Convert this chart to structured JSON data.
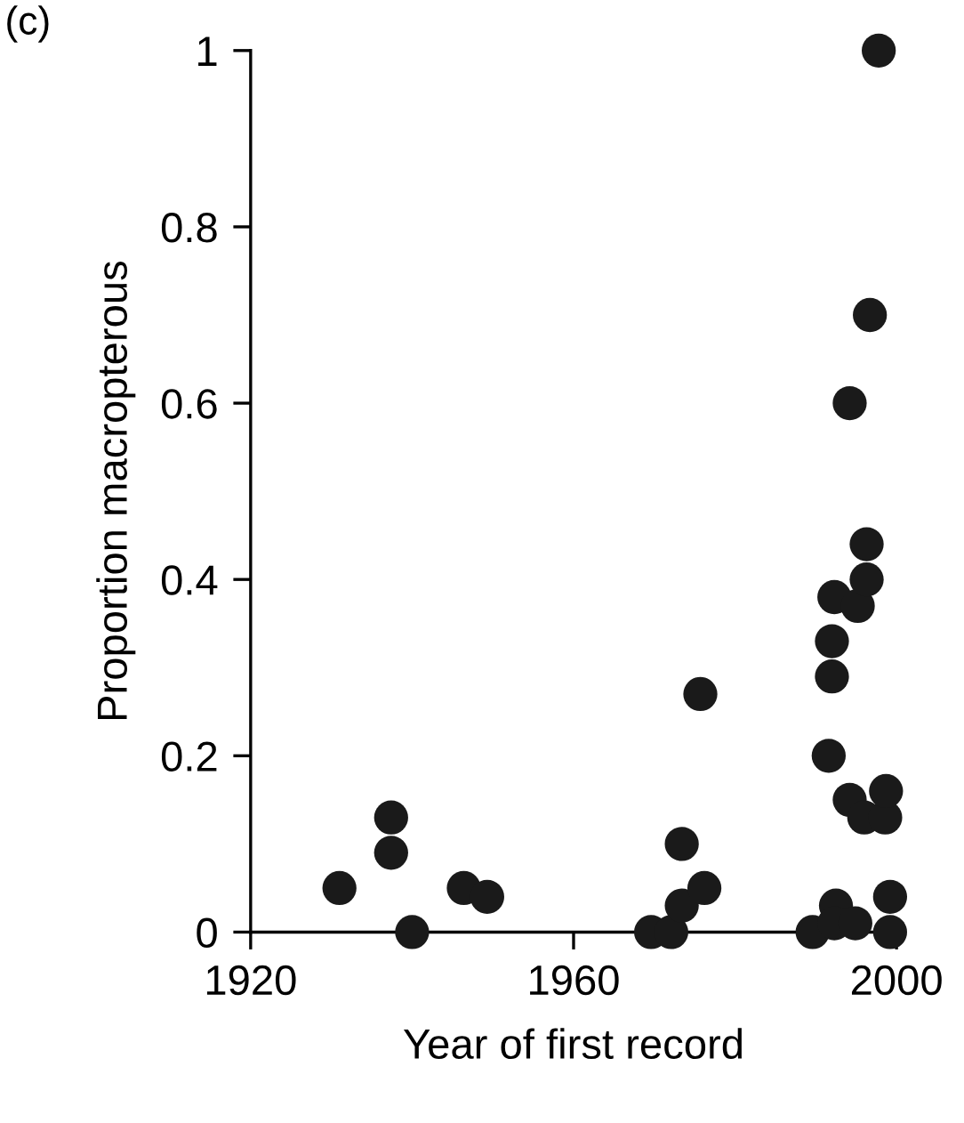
{
  "chart_data": {
    "type": "scatter",
    "xlabel": "Year of first record",
    "ylabel": "Proportion macropterous",
    "annotations": [
      "(c)"
    ],
    "x": [
      1931,
      1937.4,
      1937.4,
      1940,
      1946.4,
      1949.3,
      1969.6,
      1972.1,
      1973.4,
      1973.4,
      1976.2,
      1975.7,
      1989.6,
      1991.6,
      1992,
      1992,
      1992.3,
      1992.5,
      1992.3,
      1994.2,
      1994.9,
      1995.2,
      1996.3,
      1996.3,
      1996,
      1998.6,
      1998.7,
      1999.2,
      1999.2,
      1997.8,
      1996.7,
      1994.2
    ],
    "values": [
      0.05,
      0.13,
      0.09,
      0,
      0.05,
      0.04,
      0,
      0,
      0.1,
      0.03,
      0.05,
      0.27,
      0,
      0.2,
      0.29,
      0.33,
      0.38,
      0.03,
      0.01,
      0.15,
      0.01,
      0.37,
      0.44,
      0.4,
      0.13,
      0.13,
      0.16,
      0.04,
      0,
      1,
      0.7,
      0.6
    ],
    "color": "#1a1a1a",
    "marker": "circle",
    "xlim": [
      1920,
      2000
    ],
    "xticks": [
      1920,
      1960,
      2000
    ],
    "ylim": [
      0,
      1
    ],
    "yticks": [
      0,
      0.2,
      0.4,
      0.6,
      0.8,
      1
    ],
    "grid": false
  }
}
